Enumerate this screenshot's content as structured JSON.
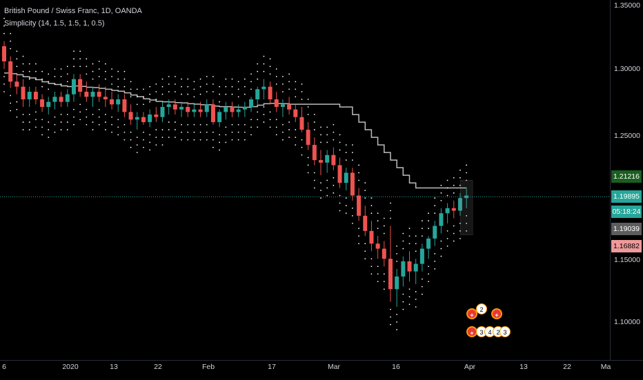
{
  "header": {
    "title": "British Pound / Swiss Franc, 1D, OANDA",
    "indicator": "Simplicity (14, 1.5, 1.5, 1, 0.5)"
  },
  "colors": {
    "background": "#000000",
    "up": "#26a69a",
    "down": "#ef5350",
    "dots": "#ffffff",
    "trail": "#bdbdbd",
    "current_line": "#26a69a"
  },
  "price_axis": {
    "ticks": [
      "1.35000",
      "1.30000",
      "1.25000",
      "1.15000",
      "1.10000"
    ]
  },
  "price_labels": [
    {
      "text": "1.21216",
      "bg": "#1b5e20",
      "fg": "#ffffff"
    },
    {
      "text": "1.19895",
      "bg": "#26a69a",
      "fg": "#ffffff"
    },
    {
      "text": "05:18:24",
      "bg": "#26a69a",
      "fg": "#ffffff"
    },
    {
      "text": "1.19039",
      "bg": "#5d5d5d",
      "fg": "#ffffff"
    },
    {
      "text": "1.16882",
      "bg": "#ef9a9a",
      "fg": "#000000"
    }
  ],
  "time_axis": {
    "ticks": [
      "6",
      "2020",
      "13",
      "22",
      "Feb",
      "17",
      "Mar",
      "16",
      "Apr",
      "13",
      "22",
      "Ma"
    ]
  },
  "events": {
    "top_row": [
      "flag",
      "2",
      "flag"
    ],
    "bottom_row": [
      "flag",
      "3",
      "4",
      "2",
      "3"
    ]
  },
  "chart_data": {
    "type": "candlestick",
    "title": "British Pound / Swiss Franc, 1D, OANDA",
    "ylim": [
      1.08,
      1.36
    ],
    "current_price": 1.19895,
    "series": [
      {
        "name": "GBPCHF",
        "ohlc": [
          [
            1.318,
            1.322,
            1.3,
            1.306
          ],
          [
            1.306,
            1.31,
            1.285,
            1.29
          ],
          [
            1.29,
            1.296,
            1.28,
            1.286
          ],
          [
            1.286,
            1.292,
            1.27,
            1.276
          ],
          [
            1.276,
            1.286,
            1.27,
            1.282
          ],
          [
            1.282,
            1.286,
            1.272,
            1.276
          ],
          [
            1.276,
            1.28,
            1.266,
            1.27
          ],
          [
            1.27,
            1.278,
            1.264,
            1.274
          ],
          [
            1.274,
            1.282,
            1.268,
            1.278
          ],
          [
            1.278,
            1.282,
            1.27,
            1.274
          ],
          [
            1.274,
            1.284,
            1.27,
            1.28
          ],
          [
            1.28,
            1.296,
            1.274,
            1.292
          ],
          [
            1.292,
            1.296,
            1.278,
            1.282
          ],
          [
            1.282,
            1.29,
            1.274,
            1.278
          ],
          [
            1.278,
            1.286,
            1.27,
            1.282
          ],
          [
            1.282,
            1.288,
            1.274,
            1.278
          ],
          [
            1.278,
            1.286,
            1.27,
            1.276
          ],
          [
            1.276,
            1.282,
            1.268,
            1.272
          ],
          [
            1.272,
            1.28,
            1.266,
            1.276
          ],
          [
            1.276,
            1.28,
            1.262,
            1.266
          ],
          [
            1.266,
            1.272,
            1.256,
            1.26
          ],
          [
            1.26,
            1.266,
            1.252,
            1.262
          ],
          [
            1.262,
            1.266,
            1.256,
            1.258
          ],
          [
            1.258,
            1.268,
            1.254,
            1.264
          ],
          [
            1.264,
            1.27,
            1.258,
            1.262
          ],
          [
            1.262,
            1.274,
            1.258,
            1.27
          ],
          [
            1.27,
            1.276,
            1.264,
            1.272
          ],
          [
            1.272,
            1.276,
            1.264,
            1.268
          ],
          [
            1.268,
            1.274,
            1.262,
            1.27
          ],
          [
            1.27,
            1.274,
            1.262,
            1.266
          ],
          [
            1.266,
            1.272,
            1.262,
            1.268
          ],
          [
            1.268,
            1.274,
            1.262,
            1.266
          ],
          [
            1.266,
            1.276,
            1.262,
            1.272
          ],
          [
            1.272,
            1.276,
            1.256,
            1.258
          ],
          [
            1.258,
            1.268,
            1.254,
            1.266
          ],
          [
            1.266,
            1.274,
            1.26,
            1.27
          ],
          [
            1.27,
            1.274,
            1.262,
            1.266
          ],
          [
            1.266,
            1.272,
            1.262,
            1.268
          ],
          [
            1.268,
            1.274,
            1.262,
            1.27
          ],
          [
            1.27,
            1.278,
            1.266,
            1.276
          ],
          [
            1.276,
            1.286,
            1.272,
            1.284
          ],
          [
            1.284,
            1.292,
            1.276,
            1.286
          ],
          [
            1.286,
            1.29,
            1.272,
            1.276
          ],
          [
            1.276,
            1.282,
            1.266,
            1.27
          ],
          [
            1.27,
            1.276,
            1.262,
            1.272
          ],
          [
            1.272,
            1.278,
            1.264,
            1.268
          ],
          [
            1.268,
            1.272,
            1.258,
            1.262
          ],
          [
            1.262,
            1.27,
            1.25,
            1.252
          ],
          [
            1.252,
            1.258,
            1.236,
            1.24
          ],
          [
            1.24,
            1.246,
            1.224,
            1.228
          ],
          [
            1.228,
            1.236,
            1.216,
            1.226
          ],
          [
            1.226,
            1.236,
            1.218,
            1.232
          ],
          [
            1.232,
            1.238,
            1.22,
            1.224
          ],
          [
            1.224,
            1.23,
            1.206,
            1.21
          ],
          [
            1.21,
            1.222,
            1.204,
            1.218
          ],
          [
            1.218,
            1.222,
            1.196,
            1.2
          ],
          [
            1.2,
            1.206,
            1.18,
            1.184
          ],
          [
            1.184,
            1.192,
            1.168,
            1.172
          ],
          [
            1.172,
            1.18,
            1.156,
            1.162
          ],
          [
            1.162,
            1.168,
            1.15,
            1.158
          ],
          [
            1.158,
            1.164,
            1.144,
            1.15
          ],
          [
            1.15,
            1.176,
            1.116,
            1.126
          ],
          [
            1.126,
            1.142,
            1.112,
            1.136
          ],
          [
            1.136,
            1.152,
            1.128,
            1.148
          ],
          [
            1.148,
            1.156,
            1.132,
            1.14
          ],
          [
            1.14,
            1.15,
            1.13,
            1.146
          ],
          [
            1.146,
            1.162,
            1.14,
            1.158
          ],
          [
            1.158,
            1.168,
            1.15,
            1.166
          ],
          [
            1.166,
            1.18,
            1.16,
            1.176
          ],
          [
            1.176,
            1.19,
            1.17,
            1.186
          ],
          [
            1.186,
            1.194,
            1.178,
            1.19
          ],
          [
            1.19,
            1.196,
            1.182,
            1.188
          ],
          [
            1.188,
            1.202,
            1.184,
            1.198
          ],
          [
            1.198,
            1.206,
            1.19,
            1.2
          ]
        ]
      }
    ]
  }
}
